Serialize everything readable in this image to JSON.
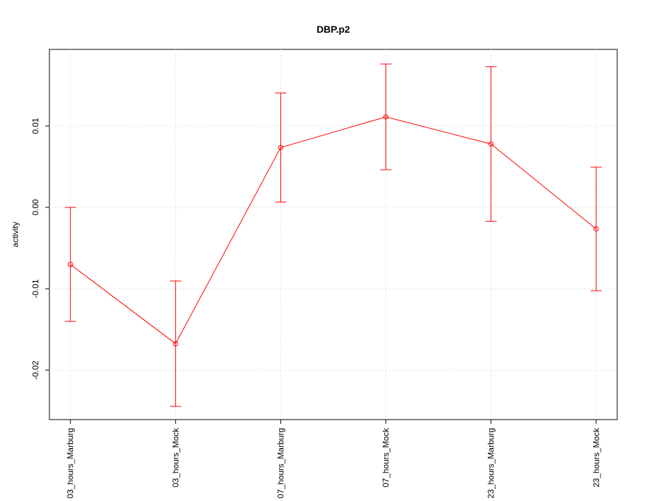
{
  "chart_data": {
    "type": "line",
    "title": "DBP.p2",
    "y_label": "activity",
    "categories": [
      "03_hours_Marburg",
      "03_hours_Mock",
      "07_hours_Marburg",
      "07_hours_Mock",
      "23_hours_Marburg",
      "23_hours_Mock"
    ],
    "values": [
      -0.00701,
      -0.01675,
      0.00735,
      0.01111,
      0.00778,
      -0.00265
    ],
    "errors": [
      0.007,
      0.0077,
      0.0067,
      0.0065,
      0.0095,
      0.0076
    ],
    "color": "#ff0000",
    "ylim": [
      -0.02607,
      0.0194
    ],
    "yticks": [
      -0.02,
      -0.01,
      {
        "value": 0,
        "label": "0.00"
      },
      0.01
    ],
    "grid": true
  }
}
